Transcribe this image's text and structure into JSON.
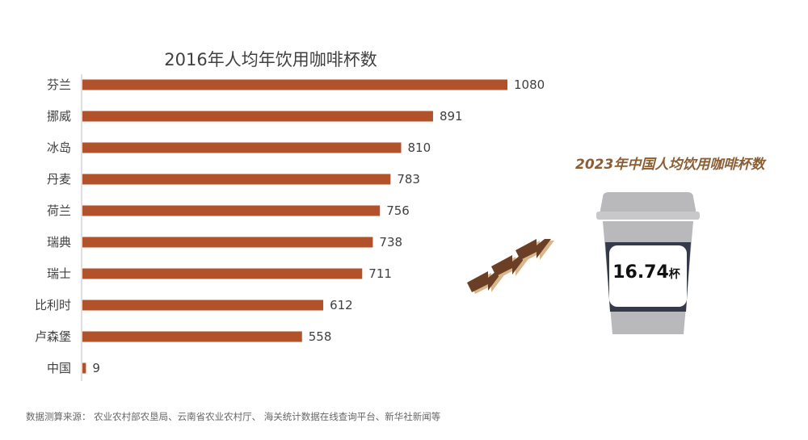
{
  "chart_data": {
    "type": "bar",
    "orientation": "horizontal",
    "title": "2016年人均年饮用咖啡杯数",
    "categories": [
      "芬兰",
      "挪威",
      "冰岛",
      "丹麦",
      "荷兰",
      "瑞典",
      "瑞士",
      "比利时",
      "卢森堡",
      "中国"
    ],
    "values": [
      1080,
      891,
      810,
      783,
      756,
      738,
      711,
      612,
      558,
      9
    ],
    "xlim": [
      0,
      1080
    ],
    "grid": false,
    "bar_color": "#b2522b"
  },
  "callout": {
    "title": "2023年中国人均饮用咖啡杯数",
    "value": "16.74",
    "unit": "杯"
  },
  "source": "数据测算来源： 农业农村部农垦局、云南省农业农村厅、 海关统计数据在线查询平台、新华社新闻等",
  "colors": {
    "bar": "#b2522b",
    "callout_title": "#8b5e34",
    "cup_body": "#b9b9bb",
    "cup_band": "#353a4a",
    "arrow_dark": "#6b3f25",
    "arrow_light": "#d9b58c"
  }
}
